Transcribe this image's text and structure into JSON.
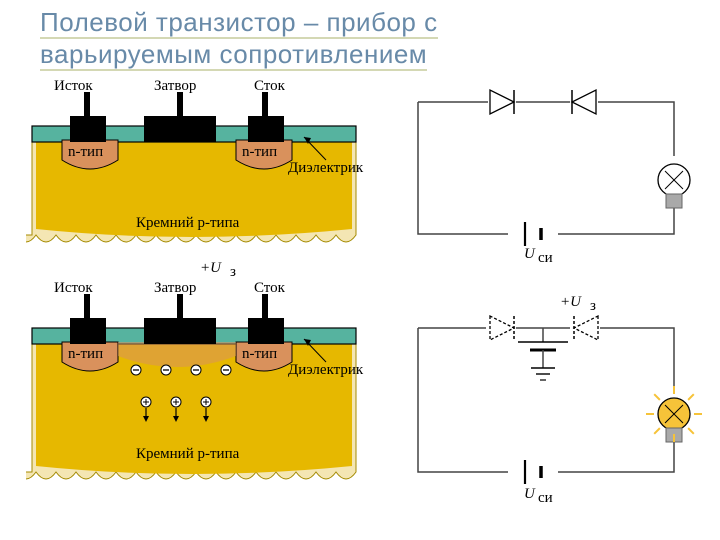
{
  "title_line1": "Полевой транзистор – прибор с",
  "title_line2": "варьируемым сопротивлением",
  "title_color": "#688aa8",
  "title_underline_color": "#d4d8b4",
  "transistor": {
    "labels": {
      "source": "Исток",
      "gate": "Затвор",
      "drain": "Сток",
      "dielectric": "Диэлектрик",
      "n_type": "n-тип",
      "substrate": "Кремний p-типа",
      "u_gate": "+U",
      "u_gate_sub": "з",
      "u_sd": "U",
      "u_sd_sub": "си"
    },
    "colors": {
      "substrate": "#e6b800",
      "substrate_edge": "#f4e6b3",
      "n_well": "#d9915c",
      "dielectric": "#56b39f",
      "metal": "#000000",
      "outline": "#000000",
      "circuit_line": "#444444",
      "bulb_off_fill": "#ffffff",
      "bulb_on_fill": "#f6c339",
      "bulb_base": "#a9a9a9"
    }
  }
}
